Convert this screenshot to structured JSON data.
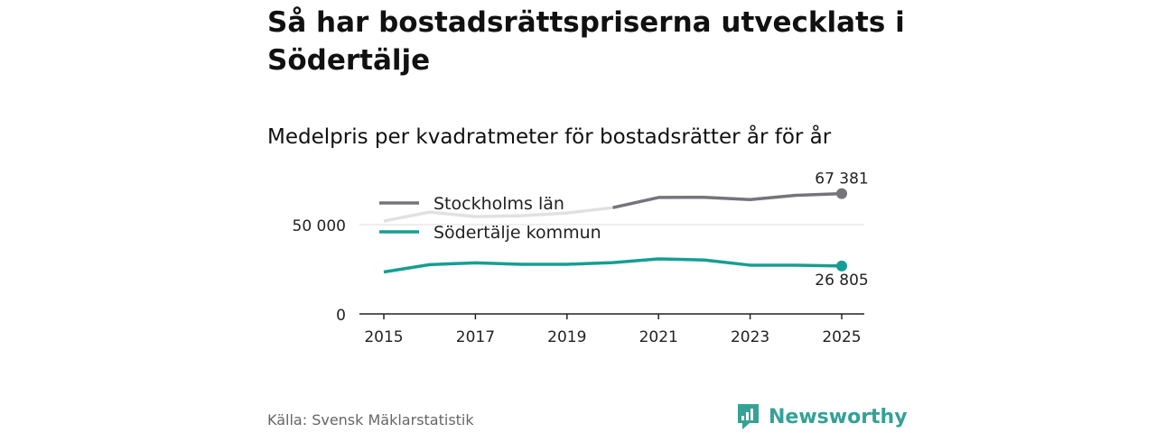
{
  "page": {
    "title": "Så har bostadsrättspriserna utvecklats i Södertälje",
    "subtitle": "Medelpris per kvadratmeter för bostadsrätter år för år",
    "source": "Källa: Svensk Mäklarstatistik",
    "brand": "Newsworthy"
  },
  "colors": {
    "stockholm": "#75747b",
    "sodertalje": "#169e94",
    "faded": "#e1e1e1",
    "grid": "#dddddd",
    "axis": "#222222",
    "brand": "#35a197"
  },
  "chart_data": {
    "type": "line",
    "title": "Så har bostadsrättspriserna utvecklats i Södertälje",
    "subtitle": "Medelpris per kvadratmeter för bostadsrätter år för år",
    "x": [
      2015,
      2016,
      2017,
      2018,
      2019,
      2020,
      2021,
      2022,
      2023,
      2024,
      2025
    ],
    "xticks": [
      2015,
      2017,
      2019,
      2021,
      2023,
      2025
    ],
    "yticks": [
      0,
      50000
    ],
    "ytick_labels": [
      "0",
      "50 000"
    ],
    "ylim": [
      0,
      70000
    ],
    "xlabel": "",
    "ylabel": "",
    "legend": "top-left",
    "series": [
      {
        "name": "Stockholms län",
        "values": [
          52000,
          57000,
          54500,
          55000,
          56500,
          59500,
          65200,
          65300,
          64000,
          66400,
          67381
        ],
        "end_label": "67 381"
      },
      {
        "name": "Södertälje kommun",
        "values": [
          23500,
          27600,
          28600,
          27800,
          27800,
          28700,
          30800,
          30200,
          27300,
          27300,
          26805
        ],
        "end_label": "26 805"
      }
    ]
  }
}
